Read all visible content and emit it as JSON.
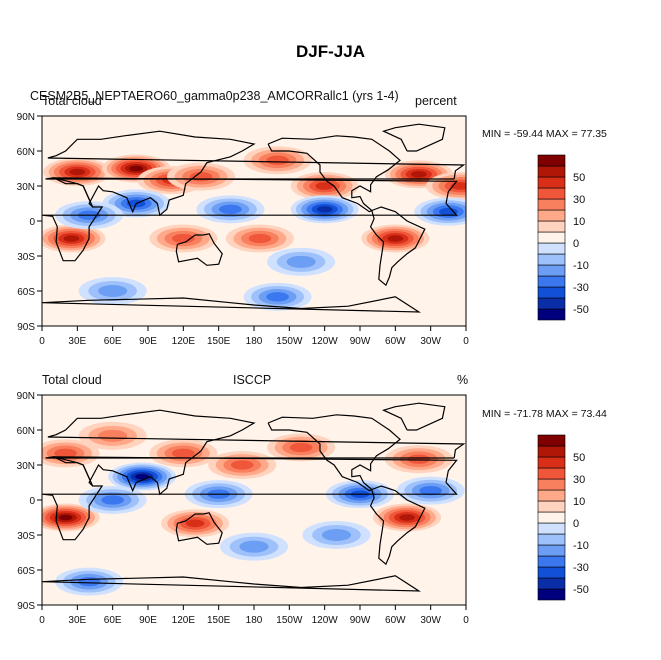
{
  "figure": {
    "title": "DJF-JJA"
  },
  "colors": {
    "levels": [
      "#00007f",
      "#0a2ea8",
      "#1250d8",
      "#3b78f0",
      "#6c9ef4",
      "#9ec1fb",
      "#cfe1ff",
      "#fff3ea",
      "#ffd3bd",
      "#ffa98a",
      "#f9805f",
      "#ef563a",
      "#d92f19",
      "#b01707",
      "#7e0000"
    ],
    "coast": "#000000"
  },
  "chart_data": [
    {
      "type": "heatmap",
      "subtype": "global lon-lat filled contour map",
      "left_label": "Total cloud",
      "center_label": "CESM2B5_NEPTAERO60_gamma0p238_AMCORRallc1 (yrs 1-4)",
      "right_label": "percent",
      "min_max": "MIN = -59.44 MAX =  77.35",
      "min": -59.44,
      "max": 77.35,
      "colorbar_ticks": [
        "50",
        "30",
        "10",
        "0",
        "-10",
        "-30",
        "-50"
      ],
      "x_ticks": [
        "0",
        "30E",
        "60E",
        "90E",
        "120E",
        "150E",
        "180",
        "150W",
        "120W",
        "90W",
        "60W",
        "30W",
        "0"
      ],
      "y_ticks": [
        "90N",
        "60N",
        "30N",
        "0",
        "30S",
        "60S",
        "90S"
      ],
      "xlim": [
        0,
        360
      ],
      "ylim": [
        -90,
        90
      ],
      "anomalies": [
        {
          "lon": 30,
          "lat": 42,
          "value": 55
        },
        {
          "lon": 80,
          "lat": 45,
          "value": 60
        },
        {
          "lon": 110,
          "lat": 35,
          "value": 40
        },
        {
          "lon": 135,
          "lat": 38,
          "value": 35
        },
        {
          "lon": 200,
          "lat": 52,
          "value": 30
        },
        {
          "lon": 240,
          "lat": 30,
          "value": 45
        },
        {
          "lon": 320,
          "lat": 40,
          "value": 50
        },
        {
          "lon": 355,
          "lat": 30,
          "value": 45
        },
        {
          "lon": 25,
          "lat": -15,
          "value": 55
        },
        {
          "lon": 120,
          "lat": -15,
          "value": 30
        },
        {
          "lon": 185,
          "lat": -15,
          "value": 35
        },
        {
          "lon": 300,
          "lat": -15,
          "value": 55
        },
        {
          "lon": 80,
          "lat": 15,
          "value": -45
        },
        {
          "lon": 160,
          "lat": 10,
          "value": -35
        },
        {
          "lon": 240,
          "lat": 10,
          "value": -50
        },
        {
          "lon": 345,
          "lat": 8,
          "value": -40
        },
        {
          "lon": 40,
          "lat": 5,
          "value": -30
        },
        {
          "lon": 220,
          "lat": -35,
          "value": -25
        },
        {
          "lon": 60,
          "lat": -60,
          "value": -25
        },
        {
          "lon": 200,
          "lat": -65,
          "value": -30
        }
      ]
    },
    {
      "type": "heatmap",
      "subtype": "global lon-lat filled contour map",
      "left_label": "Total cloud",
      "center_label": "ISCCP",
      "right_label": "%",
      "min_max": "MIN = -71.78 MAX =  73.44",
      "min": -71.78,
      "max": 73.44,
      "colorbar_ticks": [
        "50",
        "30",
        "10",
        "0",
        "-10",
        "-30",
        "-50"
      ],
      "x_ticks": [
        "0",
        "30E",
        "60E",
        "90E",
        "120E",
        "150E",
        "180",
        "150W",
        "120W",
        "90W",
        "60W",
        "30W",
        "0"
      ],
      "y_ticks": [
        "90N",
        "60N",
        "30N",
        "0",
        "30S",
        "60S",
        "90S"
      ],
      "xlim": [
        0,
        360
      ],
      "ylim": [
        -90,
        90
      ],
      "anomalies": [
        {
          "lon": 20,
          "lat": 40,
          "value": 30
        },
        {
          "lon": 60,
          "lat": 55,
          "value": 25
        },
        {
          "lon": 120,
          "lat": 40,
          "value": 30
        },
        {
          "lon": 170,
          "lat": 30,
          "value": 35
        },
        {
          "lon": 220,
          "lat": 45,
          "value": 30
        },
        {
          "lon": 320,
          "lat": 35,
          "value": 35
        },
        {
          "lon": 20,
          "lat": -15,
          "value": 65
        },
        {
          "lon": 130,
          "lat": -20,
          "value": 40
        },
        {
          "lon": 310,
          "lat": -15,
          "value": 55
        },
        {
          "lon": 85,
          "lat": 20,
          "value": -60
        },
        {
          "lon": 60,
          "lat": 0,
          "value": -35
        },
        {
          "lon": 150,
          "lat": 5,
          "value": -30
        },
        {
          "lon": 270,
          "lat": 5,
          "value": -45
        },
        {
          "lon": 330,
          "lat": 8,
          "value": -30
        },
        {
          "lon": 40,
          "lat": -70,
          "value": -35
        },
        {
          "lon": 180,
          "lat": -40,
          "value": -20
        },
        {
          "lon": 250,
          "lat": -30,
          "value": -20
        }
      ]
    }
  ]
}
